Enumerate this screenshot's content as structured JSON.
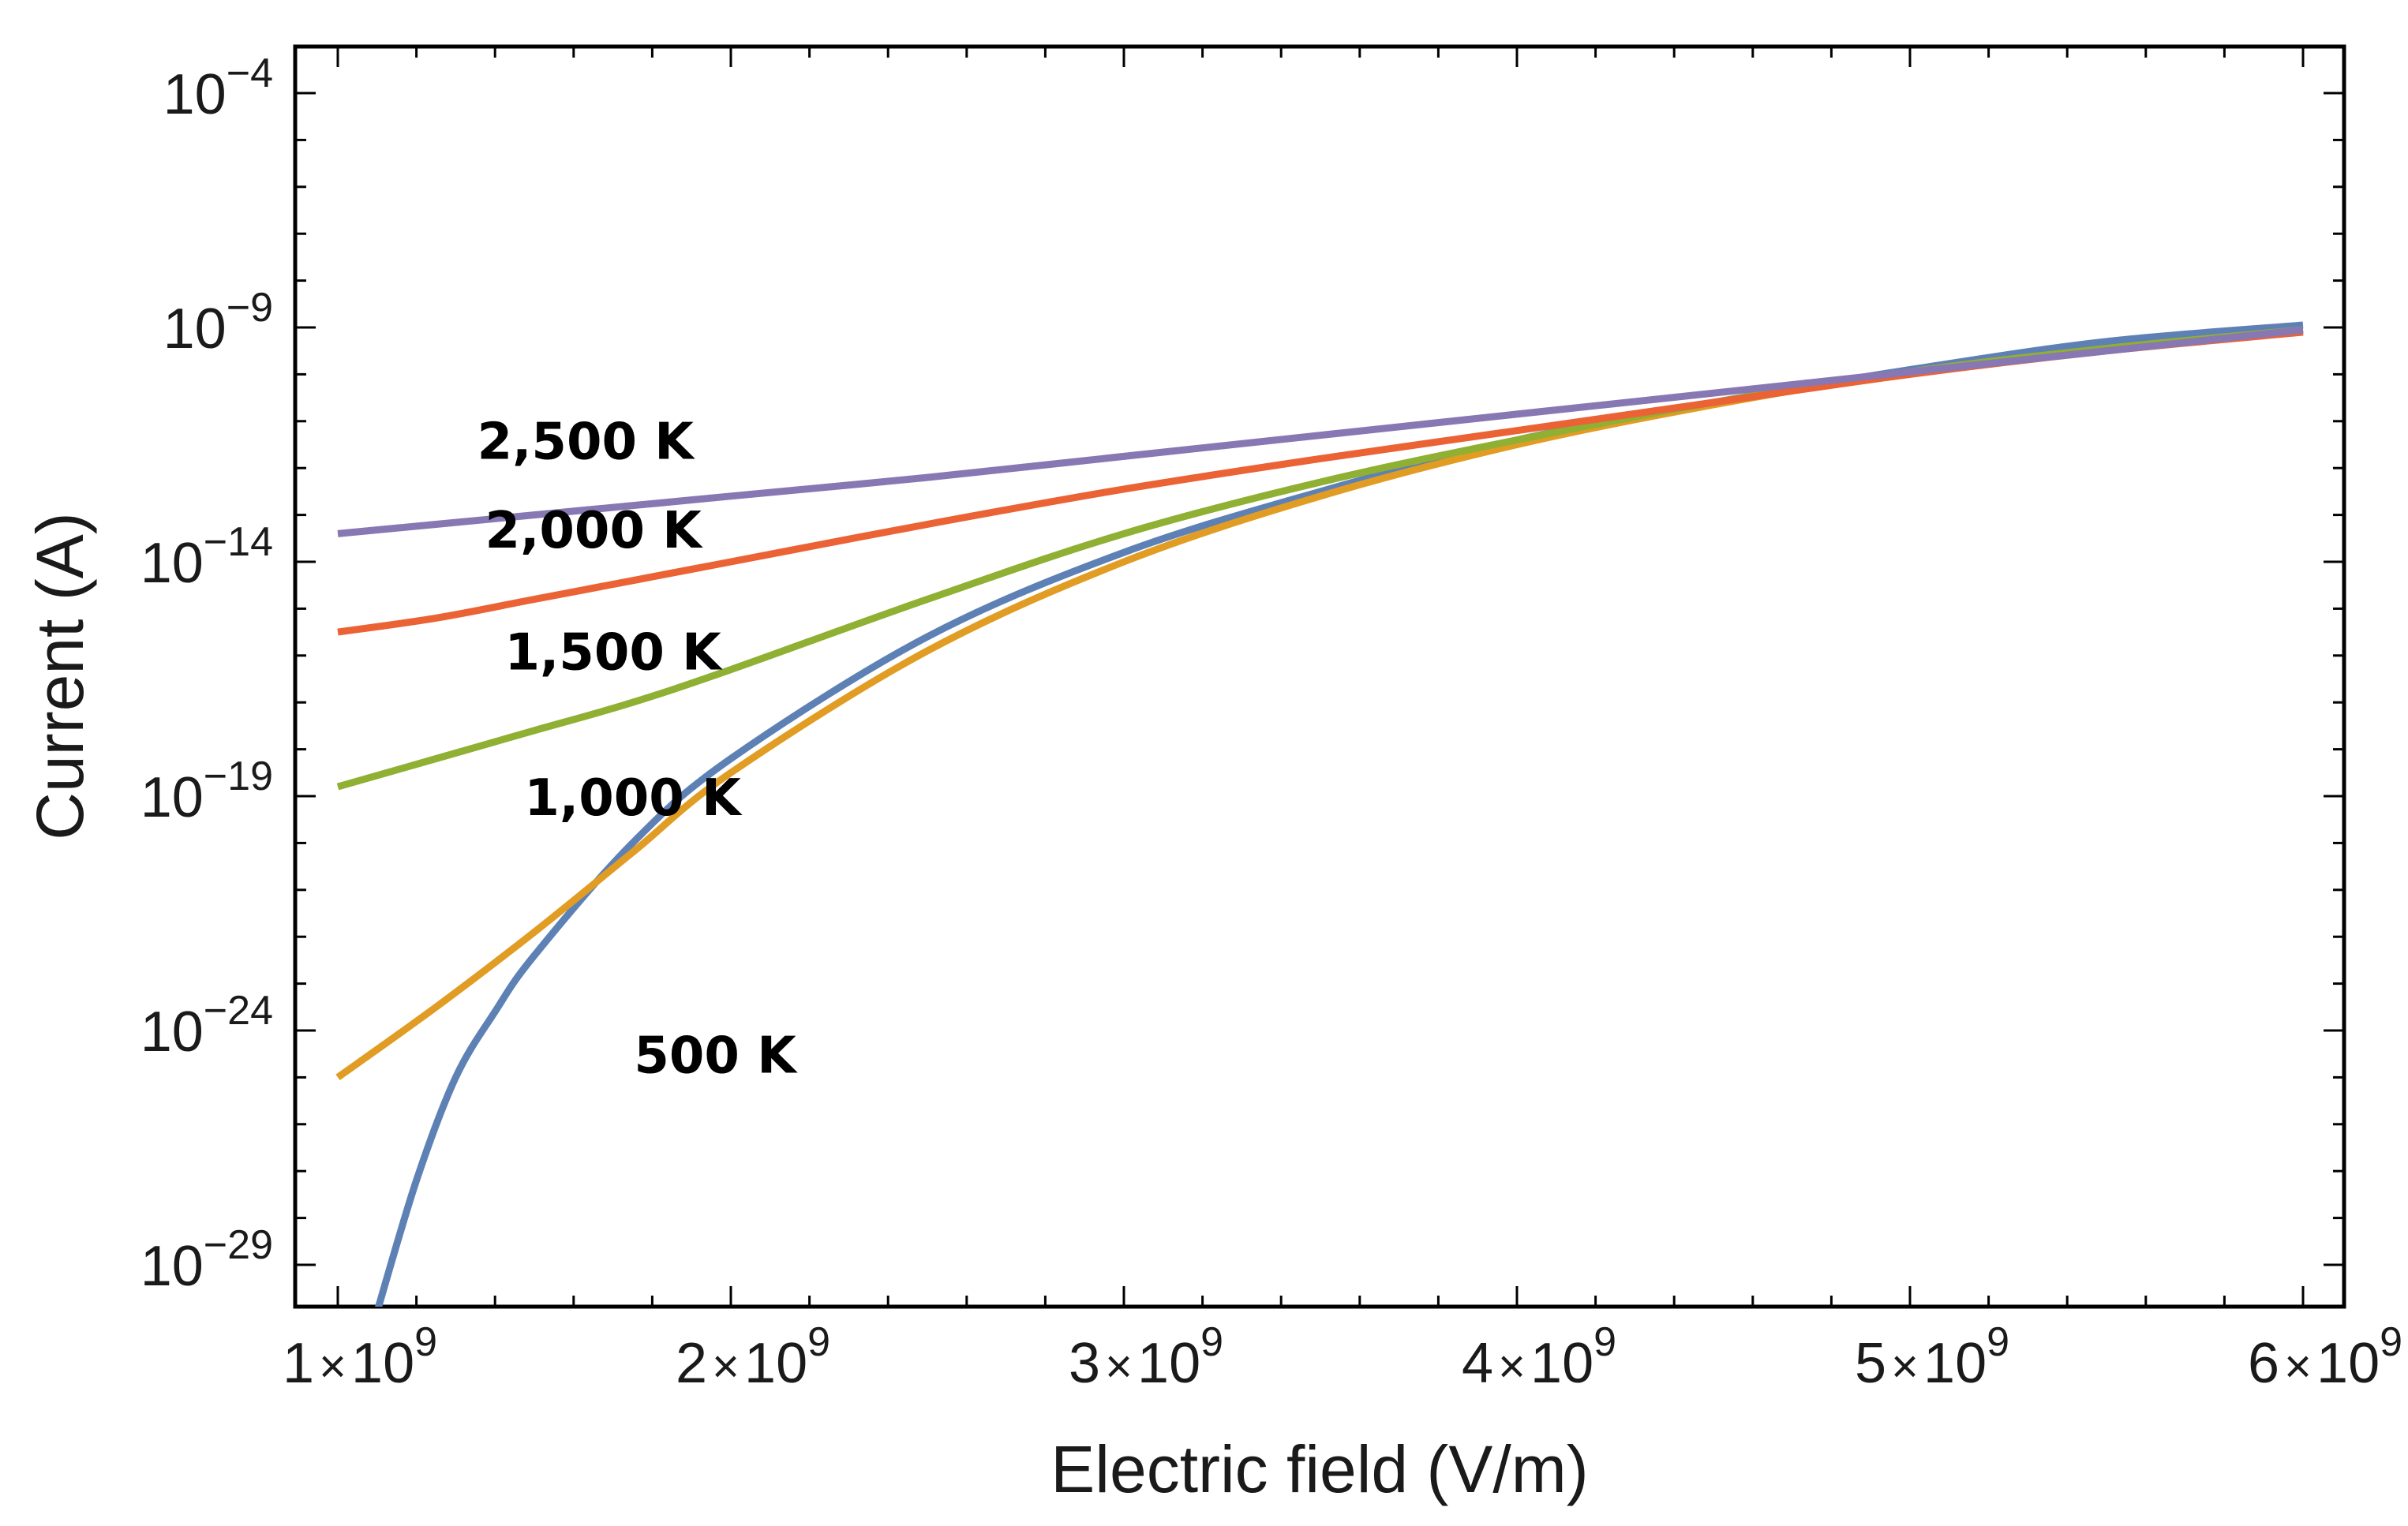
{
  "chart_data": {
    "type": "line",
    "title": "",
    "xlabel": "Electric field (V/m)",
    "ylabel": "Current (A)",
    "x_scale": "linear",
    "y_scale": "log",
    "xlim": [
      1000000000.0,
      6100000000.0
    ],
    "ylim_log10": [
      -30,
      -3
    ],
    "x_ticks": [
      {
        "value": 1000000000.0,
        "mantissa": "1",
        "times": "×",
        "base": "10",
        "exp": "9"
      },
      {
        "value": 2000000000.0,
        "mantissa": "2",
        "times": "×",
        "base": "10",
        "exp": "9"
      },
      {
        "value": 3000000000.0,
        "mantissa": "3",
        "times": "×",
        "base": "10",
        "exp": "9"
      },
      {
        "value": 4000000000.0,
        "mantissa": "4",
        "times": "×",
        "base": "10",
        "exp": "9"
      },
      {
        "value": 5000000000.0,
        "mantissa": "5",
        "times": "×",
        "base": "10",
        "exp": "9"
      },
      {
        "value": 6000000000.0,
        "mantissa": "6",
        "times": "×",
        "base": "10",
        "exp": "9"
      }
    ],
    "y_ticks": [
      {
        "log10": -4,
        "base": "10",
        "exp": "−4"
      },
      {
        "log10": -9,
        "base": "10",
        "exp": "−9"
      },
      {
        "log10": -14,
        "base": "10",
        "exp": "−14"
      },
      {
        "log10": -19,
        "base": "10",
        "exp": "−19"
      },
      {
        "log10": -24,
        "base": "10",
        "exp": "−24"
      },
      {
        "log10": -29,
        "base": "10",
        "exp": "−29"
      }
    ],
    "x": [
      1000000000.0,
      1250000000.0,
      1500000000.0,
      1750000000.0,
      2000000000.0,
      2500000000.0,
      3000000000.0,
      3500000000.0,
      4000000000.0,
      4500000000.0,
      5000000000.0,
      5500000000.0,
      6000000000.0
    ],
    "series": [
      {
        "name": "500 K",
        "label": "500 K",
        "color": "#5e81b5",
        "x": [
          1100000000.0,
          1200000000.0,
          1300000000.0,
          1400000000.0,
          1500000000.0,
          1750000000.0,
          2000000000.0,
          2500000000.0,
          3000000000.0,
          3500000000.0,
          4000000000.0,
          4500000000.0,
          5000000000.0,
          5500000000.0,
          6000000000.0
        ],
        "log10_current": [
          -30.0,
          -27.2,
          -25.0,
          -23.6,
          -22.4,
          -20.0,
          -18.2,
          -15.6,
          -13.8,
          -12.5,
          -11.4,
          -10.6,
          -9.9,
          -9.3,
          -8.95
        ]
      },
      {
        "name": "1,000 K",
        "label": "1,000 K",
        "color": "#e19c24",
        "x": [
          1000000000.0,
          1250000000.0,
          1500000000.0,
          1750000000.0,
          2000000000.0,
          2500000000.0,
          3000000000.0,
          3500000000.0,
          4000000000.0,
          4500000000.0,
          5000000000.0,
          5500000000.0,
          6000000000.0
        ],
        "log10_current": [
          -25.0,
          -23.5,
          -21.9,
          -20.2,
          -18.5,
          -15.9,
          -14.0,
          -12.6,
          -11.5,
          -10.65,
          -9.95,
          -9.45,
          -9.05
        ]
      },
      {
        "name": "1,500 K",
        "label": "1,500 K",
        "color": "#8fb032",
        "x": [
          1000000000.0,
          1250000000.0,
          1500000000.0,
          1750000000.0,
          2000000000.0,
          2500000000.0,
          3000000000.0,
          3500000000.0,
          4000000000.0,
          4500000000.0,
          5000000000.0,
          5500000000.0,
          6000000000.0
        ],
        "log10_current": [
          -18.8,
          -18.2,
          -17.6,
          -17.0,
          -16.3,
          -14.8,
          -13.4,
          -12.3,
          -11.4,
          -10.6,
          -9.95,
          -9.45,
          -9.05
        ]
      },
      {
        "name": "2,000 K",
        "label": "2,000 K",
        "color": "#eb6235",
        "x": [
          1000000000.0,
          1250000000.0,
          1500000000.0,
          1750000000.0,
          2000000000.0,
          2500000000.0,
          3000000000.0,
          3500000000.0,
          4000000000.0,
          4500000000.0,
          5000000000.0,
          5500000000.0,
          6000000000.0
        ],
        "log10_current": [
          -15.5,
          -15.2,
          -14.8,
          -14.4,
          -14.0,
          -13.2,
          -12.45,
          -11.8,
          -11.2,
          -10.6,
          -10.0,
          -9.5,
          -9.1
        ]
      },
      {
        "name": "2,500 K",
        "label": "2,500 K",
        "color": "#8778b3",
        "x": [
          1000000000.0,
          1250000000.0,
          1500000000.0,
          1750000000.0,
          2000000000.0,
          2500000000.0,
          3000000000.0,
          3500000000.0,
          4000000000.0,
          4500000000.0,
          5000000000.0,
          5500000000.0,
          6000000000.0
        ],
        "log10_current": [
          -13.4,
          -13.2,
          -13.0,
          -12.8,
          -12.6,
          -12.2,
          -11.75,
          -11.3,
          -10.85,
          -10.4,
          -9.95,
          -9.5,
          -9.05
        ]
      }
    ],
    "annotations": [
      {
        "text": "2,500 K",
        "series": "2,500 K",
        "at_x": 1630000000.0,
        "at_log10": -11.8
      },
      {
        "text": "2,000 K",
        "series": "2,000 K",
        "at_x": 1650000000.0,
        "at_log10": -13.7
      },
      {
        "text": "1,500 K",
        "series": "1,500 K",
        "at_x": 1700000000.0,
        "at_log10": -16.3
      },
      {
        "text": "1,000 K",
        "series": "1,000 K",
        "at_x": 1750000000.0,
        "at_log10": -19.4
      },
      {
        "text": "500 K",
        "series": "500 K",
        "at_x": 1960000000.0,
        "at_log10": -24.9
      }
    ],
    "grid": false,
    "legend": "none"
  }
}
